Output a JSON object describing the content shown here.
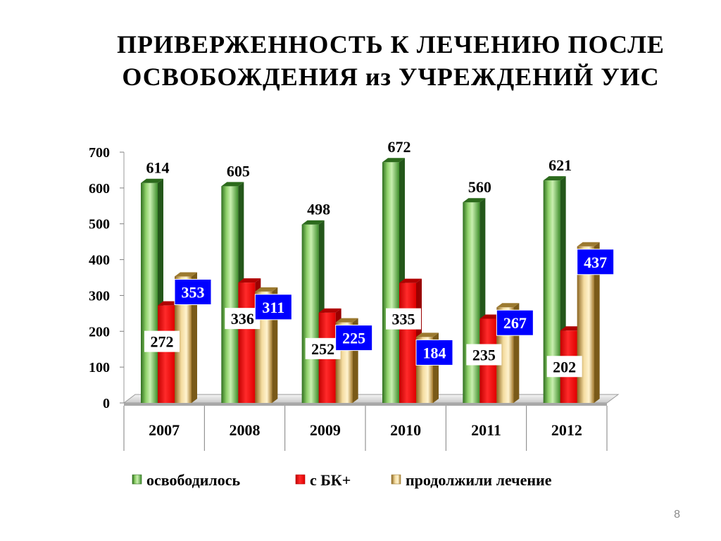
{
  "title": {
    "line1": "ПРИВЕРЖЕННОСТЬ  К  ЛЕЧЕНИЮ  ПОСЛЕ",
    "line2": "ОСВОБОЖДЕНИЯ  из УЧРЕЖДЕНИЙ  УИС"
  },
  "page_number": "8",
  "chart_data": {
    "type": "bar",
    "title": "ПРИВЕРЖЕННОСТЬ  К  ЛЕЧЕНИЮ  ПОСЛЕ ОСВОБОЖДЕНИЯ  из УЧРЕЖДЕНИЙ  УИС",
    "categories": [
      "2007",
      "2008",
      "2009",
      "2010",
      "2011",
      "2012"
    ],
    "series": [
      {
        "name": "освободилось",
        "values": [
          614,
          605,
          498,
          672,
          560,
          621
        ],
        "color": "#3f8f2c"
      },
      {
        "name": "с БК+",
        "values": [
          272,
          336,
          252,
          335,
          235,
          202
        ],
        "color": "#ff0000"
      },
      {
        "name": "продолжили  лечение",
        "values": [
          353,
          311,
          225,
          184,
          267,
          437
        ],
        "color": "#c9a24a"
      }
    ],
    "yticks": [
      "0",
      "100",
      "200",
      "300",
      "400",
      "500",
      "600",
      "700"
    ],
    "ylim": [
      0,
      700
    ],
    "legend_position": "bottom",
    "grid": false
  }
}
